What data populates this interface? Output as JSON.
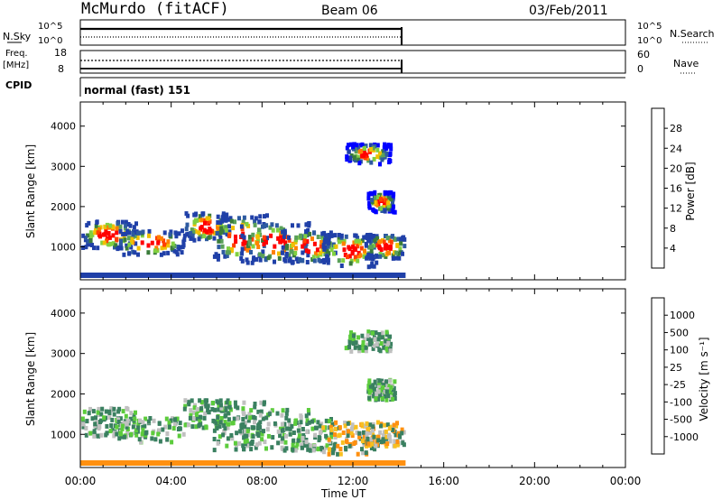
{
  "header": {
    "station": "McMurdo (fitACF)",
    "beam": "Beam 06",
    "date": "03/Feb/2011"
  },
  "top_panels": {
    "nsky_label": "N.Sky",
    "nsky_ticks": [
      "10^5",
      "10^0"
    ],
    "nsearch_label": "N.Search",
    "freq_label": "Freq.",
    "freq_units": "[MHz]",
    "freq_ticks": [
      "18",
      "8"
    ],
    "nave_ticks": [
      "60",
      "0"
    ],
    "nave_label": "Nave",
    "cpid_label": "CPID",
    "cpid_value": "normal (fast) 151"
  },
  "colors": {
    "power_scale": [
      "#0000ff",
      "#2040a8",
      "#2d5aa0",
      "#3a7c3a",
      "#5aa05a",
      "#80d040",
      "#f0c000",
      "#ff8000",
      "#ff4000",
      "#ff0000"
    ],
    "velocity_scale": [
      "#2b3fa8",
      "#2f6db0",
      "#3a8060",
      "#5ccc3c",
      "#c0c0c0",
      "#f8c020",
      "#ff9010",
      "#ff5010",
      "#e01010"
    ]
  },
  "chart_data": [
    {
      "type": "heatmap",
      "title": "",
      "ylabel": "Slant Range [km]",
      "xlabel": "Time UT",
      "ylim": [
        180,
        4600
      ],
      "y_ticks": [
        "4000",
        "3000",
        "2000",
        "1000"
      ],
      "x_ticks": [
        "00:00",
        "04:00",
        "08:00",
        "12:00",
        "16:00",
        "20:00",
        "00:00"
      ],
      "data_extent_hours": [
        0,
        14.2
      ],
      "colorbar_label": "Power [dB]",
      "colorbar_ticks": [
        "28",
        "24",
        "20",
        "16",
        "12",
        "8",
        "4"
      ],
      "colorbar_range": [
        0,
        30
      ]
    },
    {
      "type": "heatmap",
      "title": "",
      "ylabel": "Slant Range [km]",
      "xlabel": "Time UT",
      "ylim": [
        180,
        4600
      ],
      "y_ticks": [
        "4000",
        "3000",
        "2000",
        "1000"
      ],
      "x_ticks": [
        "00:00",
        "04:00",
        "08:00",
        "12:00",
        "16:00",
        "20:00",
        "00:00"
      ],
      "data_extent_hours": [
        0,
        14.2
      ],
      "colorbar_label": "Velocity [m s⁻¹]",
      "colorbar_ticks": [
        "1000",
        "500",
        "100",
        "25",
        "-25",
        "-100",
        "-500",
        "-1000"
      ],
      "colorbar_range": [
        -1200,
        1200
      ]
    }
  ]
}
